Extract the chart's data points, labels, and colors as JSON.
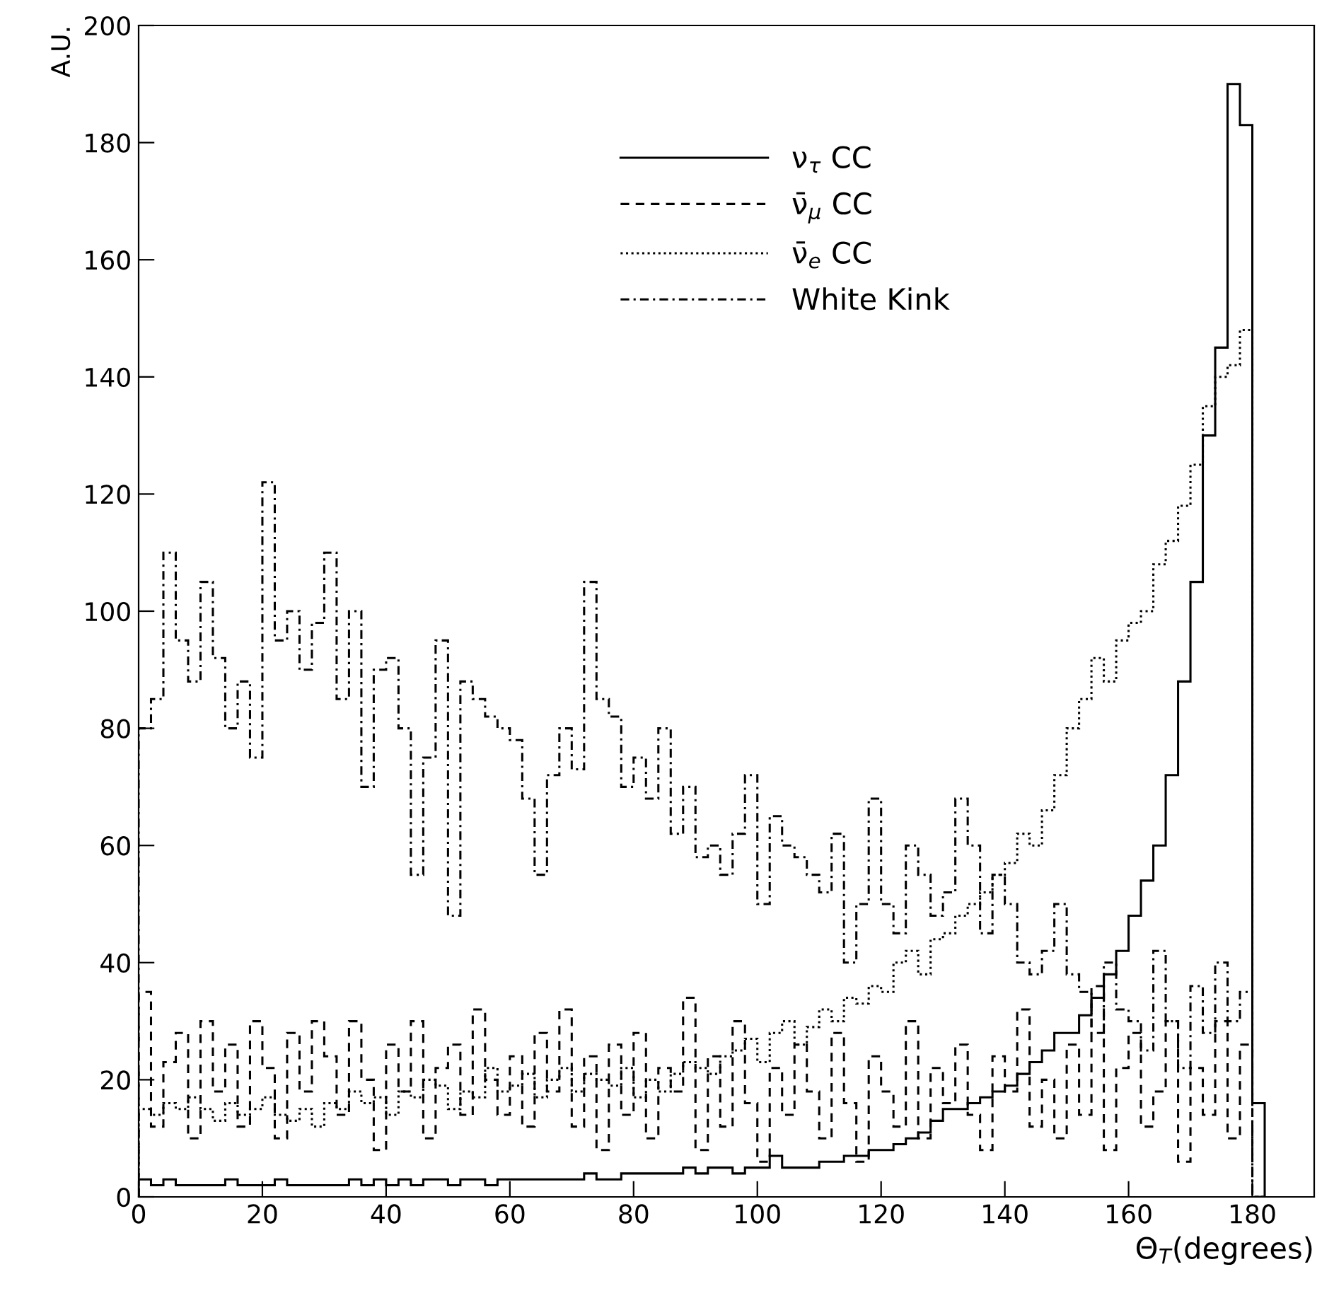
{
  "chart_data": {
    "type": "histogram",
    "xlabel": "Θ$_{T}$(degrees)",
    "ylabel": "A.U.",
    "bins": [
      0,
      2,
      4,
      6,
      8,
      10,
      12,
      14,
      16,
      18,
      20,
      22,
      24,
      26,
      28,
      30,
      32,
      34,
      36,
      38,
      40,
      42,
      44,
      46,
      48,
      50,
      52,
      54,
      56,
      58,
      60,
      62,
      64,
      66,
      68,
      70,
      72,
      74,
      76,
      78,
      80,
      82,
      84,
      86,
      88,
      90,
      92,
      94,
      96,
      98,
      100,
      102,
      104,
      106,
      108,
      110,
      112,
      114,
      116,
      118,
      120,
      122,
      124,
      126,
      128,
      130,
      132,
      134,
      136,
      138,
      140,
      142,
      144,
      146,
      148,
      150,
      152,
      154,
      156,
      158,
      160,
      162,
      164,
      166,
      168,
      170,
      172,
      174,
      176,
      178,
      180,
      182
    ],
    "series": [
      {
        "name": "ν$_{τ}$ CC",
        "color": "#000000",
        "line_style": "solid",
        "values": [
          3,
          2,
          3,
          2,
          2,
          2,
          2,
          3,
          2,
          2,
          2,
          3,
          2,
          2,
          2,
          2,
          2,
          3,
          2,
          3,
          2,
          3,
          2,
          3,
          3,
          2,
          3,
          3,
          2,
          3,
          3,
          3,
          3,
          3,
          3,
          3,
          4,
          3,
          3,
          4,
          4,
          4,
          4,
          4,
          5,
          4,
          5,
          5,
          4,
          5,
          5,
          7,
          5,
          5,
          5,
          6,
          6,
          7,
          7,
          8,
          8,
          9,
          10,
          11,
          13,
          15,
          15,
          16,
          17,
          18,
          19,
          21,
          23,
          25,
          28,
          28,
          31,
          34,
          38,
          42,
          48,
          54,
          60,
          72,
          88,
          105,
          130,
          145,
          190,
          183,
          16
        ]
      },
      {
        "name": "ν̄$_{μ}$ CC",
        "color": "#000000",
        "line_style": "dashed",
        "values": [
          35,
          12,
          23,
          28,
          10,
          30,
          18,
          26,
          12,
          30,
          22,
          10,
          28,
          18,
          30,
          24,
          14,
          30,
          20,
          8,
          26,
          18,
          30,
          10,
          22,
          26,
          14,
          32,
          20,
          14,
          24,
          12,
          28,
          18,
          32,
          12,
          24,
          8,
          26,
          14,
          28,
          10,
          22,
          18,
          34,
          8,
          24,
          12,
          30,
          16,
          6,
          22,
          14,
          26,
          18,
          10,
          28,
          16,
          6,
          24,
          18,
          12,
          30,
          10,
          22,
          16,
          26,
          14,
          8,
          24,
          18,
          32,
          12,
          20,
          10,
          26,
          14,
          36,
          8,
          22,
          28,
          12,
          18,
          30,
          6,
          22,
          14,
          30,
          10,
          26,
          0
        ]
      },
      {
        "name": "ν̄$_{e}$ CC",
        "color": "#000000",
        "line_style": "dotted",
        "values": [
          15,
          14,
          16,
          15,
          17,
          15,
          13,
          16,
          14,
          15,
          17,
          14,
          13,
          15,
          12,
          16,
          15,
          18,
          16,
          17,
          14,
          18,
          17,
          20,
          19,
          15,
          18,
          17,
          22,
          18,
          19,
          21,
          17,
          20,
          22,
          18,
          21,
          20,
          19,
          22,
          17,
          20,
          18,
          21,
          23,
          22,
          21,
          24,
          25,
          27,
          23,
          28,
          30,
          26,
          29,
          32,
          30,
          34,
          33,
          36,
          35,
          40,
          42,
          38,
          44,
          45,
          48,
          50,
          52,
          55,
          57,
          62,
          60,
          66,
          72,
          80,
          85,
          92,
          88,
          95,
          98,
          100,
          108,
          112,
          118,
          125,
          135,
          140,
          142,
          148,
          0
        ]
      },
      {
        "name": "White Kink",
        "color": "#000000",
        "line_style": "dashdot",
        "values": [
          80,
          85,
          110,
          95,
          88,
          105,
          92,
          80,
          88,
          75,
          122,
          95,
          100,
          90,
          98,
          110,
          85,
          100,
          70,
          90,
          92,
          80,
          55,
          75,
          95,
          48,
          88,
          85,
          82,
          80,
          78,
          68,
          55,
          72,
          80,
          73,
          105,
          85,
          82,
          70,
          75,
          68,
          80,
          62,
          70,
          58,
          60,
          55,
          62,
          72,
          50,
          65,
          60,
          58,
          55,
          52,
          62,
          40,
          50,
          68,
          50,
          45,
          60,
          55,
          48,
          52,
          68,
          60,
          45,
          55,
          50,
          40,
          38,
          42,
          50,
          38,
          35,
          28,
          40,
          32,
          30,
          25,
          42,
          30,
          22,
          36,
          28,
          40,
          30,
          35,
          0
        ]
      }
    ],
    "xlim": [
      0,
      190
    ],
    "xticks": [
      0,
      20,
      40,
      60,
      80,
      100,
      120,
      140,
      160,
      180
    ],
    "ylim": [
      0,
      200
    ],
    "yticks": [
      0,
      20,
      40,
      60,
      80,
      100,
      120,
      140,
      160,
      180,
      200
    ],
    "grid": false,
    "legend": "top"
  }
}
